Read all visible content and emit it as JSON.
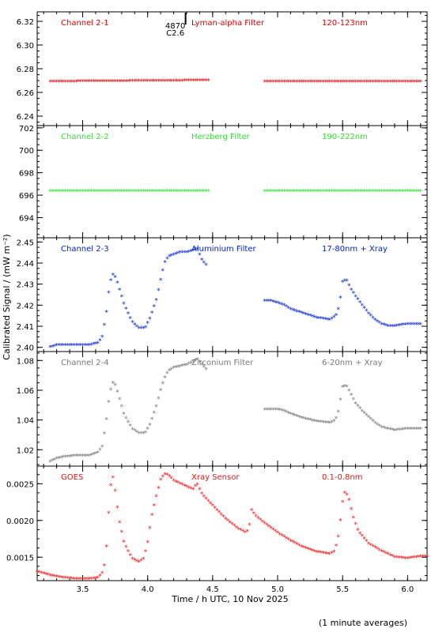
{
  "chart_data": {
    "type": "scatter",
    "xlabel": "Time / h UTC, 10 Nov 2025",
    "ylabel": "Calibrated Signal / (mW m⁻²)",
    "footnote": "(1 minute averages)",
    "xlim": [
      3.15,
      6.15
    ],
    "xticks": [
      3.5,
      4.0,
      4.5,
      5.0,
      5.5,
      6.0
    ],
    "xtick_labels": [
      "3.5",
      "4.0",
      "4.5",
      "5.0",
      "5.5",
      "6.0"
    ],
    "grid": false,
    "annotation": {
      "x": 4.17,
      "lines": [
        "4870",
        "C2.6"
      ]
    },
    "panels": [
      {
        "labels": [
          "Channel 2-1",
          "Lyman-alpha Filter",
          "120-123nm"
        ],
        "color": "#dd0000",
        "ylim": [
          6.232,
          6.328
        ],
        "yticks": [
          6.24,
          6.26,
          6.28,
          6.3,
          6.32
        ],
        "ytick_labels": [
          "6.24",
          "6.26",
          "6.28",
          "6.30",
          "6.32"
        ],
        "segments": [
          {
            "x": [
              3.25,
              4.48
            ],
            "y": [
              6.269,
              6.27
            ]
          },
          {
            "x": [
              4.9,
              6.1
            ],
            "y": [
              6.269,
              6.269
            ]
          }
        ]
      },
      {
        "labels": [
          "Channel 2-2",
          "Herzberg Filter",
          "190-222nm"
        ],
        "color": "#33dd33",
        "ylim": [
          692.2,
          702.2
        ],
        "yticks": [
          694,
          696,
          698,
          700,
          702
        ],
        "ytick_labels": [
          "694",
          "696",
          "698",
          "700",
          "702"
        ],
        "segments": [
          {
            "x": [
              3.25,
              4.48
            ],
            "y": [
              696.35,
              696.35
            ]
          },
          {
            "x": [
              4.9,
              6.1
            ],
            "y": [
              696.35,
              696.35
            ]
          }
        ]
      },
      {
        "labels": [
          "Channel 2-3",
          "Aluminium Filter",
          "17-80nm + Xray"
        ],
        "color": "#0022cc",
        "ylim": [
          2.398,
          2.452
        ],
        "yticks": [
          2.4,
          2.41,
          2.42,
          2.43,
          2.44,
          2.45
        ],
        "ytick_labels": [
          "2.40",
          "2.41",
          "2.42",
          "2.43",
          "2.44",
          "2.45"
        ],
        "segments": [
          {
            "x": [
              3.25,
              3.3,
              3.35,
              3.45,
              3.55,
              3.62,
              3.65,
              3.68,
              3.7,
              3.72,
              3.74,
              3.77,
              3.82,
              3.88,
              3.93,
              3.98,
              4.02,
              4.07,
              4.1,
              4.13,
              4.16,
              4.2,
              4.25,
              4.3,
              4.35,
              4.38,
              4.4,
              4.42,
              4.45
            ],
            "y": [
              2.4,
              2.401,
              2.401,
              2.401,
              2.401,
              2.402,
              2.405,
              2.415,
              2.426,
              2.433,
              2.435,
              2.43,
              2.42,
              2.412,
              2.409,
              2.409,
              2.414,
              2.423,
              2.432,
              2.44,
              2.443,
              2.444,
              2.445,
              2.445,
              2.446,
              2.447,
              2.444,
              2.441,
              2.439
            ]
          },
          {
            "x": [
              4.9,
              4.95,
              5.0,
              5.05,
              5.1,
              5.2,
              5.3,
              5.4,
              5.43,
              5.46,
              5.48,
              5.5,
              5.53,
              5.56,
              5.6,
              5.65,
              5.7,
              5.75,
              5.8,
              5.85,
              5.9,
              6.0,
              6.1
            ],
            "y": [
              2.422,
              2.422,
              2.421,
              2.42,
              2.418,
              2.416,
              2.414,
              2.413,
              2.414,
              2.416,
              2.422,
              2.431,
              2.432,
              2.428,
              2.424,
              2.42,
              2.416,
              2.413,
              2.411,
              2.41,
              2.41,
              2.411,
              2.411
            ]
          }
        ]
      },
      {
        "labels": [
          "Channel 2-4",
          "Zirconium Filter",
          "6-20nm + Xray"
        ],
        "color": "#777777",
        "ylim": [
          1.009,
          1.086
        ],
        "yticks": [
          1.02,
          1.04,
          1.06,
          1.08
        ],
        "ytick_labels": [
          "1.02",
          "1.04",
          "1.06",
          "1.08"
        ],
        "segments": [
          {
            "x": [
              3.25,
              3.3,
              3.35,
              3.45,
              3.55,
              3.62,
              3.65,
              3.68,
              3.7,
              3.72,
              3.74,
              3.77,
              3.82,
              3.88,
              3.93,
              3.98,
              4.02,
              4.07,
              4.1,
              4.13,
              4.16,
              4.2,
              4.25,
              4.3,
              4.35,
              4.38,
              4.4,
              4.42,
              4.45
            ],
            "y": [
              1.012,
              1.014,
              1.015,
              1.016,
              1.016,
              1.018,
              1.022,
              1.038,
              1.052,
              1.062,
              1.066,
              1.058,
              1.043,
              1.034,
              1.031,
              1.031,
              1.037,
              1.05,
              1.06,
              1.068,
              1.073,
              1.075,
              1.076,
              1.077,
              1.079,
              1.081,
              1.079,
              1.077,
              1.074
            ]
          },
          {
            "x": [
              4.9,
              4.95,
              5.0,
              5.05,
              5.1,
              5.2,
              5.3,
              5.4,
              5.43,
              5.46,
              5.48,
              5.5,
              5.53,
              5.56,
              5.6,
              5.65,
              5.7,
              5.75,
              5.8,
              5.85,
              5.9,
              6.0,
              6.1
            ],
            "y": [
              1.047,
              1.047,
              1.047,
              1.046,
              1.044,
              1.041,
              1.039,
              1.038,
              1.039,
              1.042,
              1.052,
              1.062,
              1.063,
              1.058,
              1.051,
              1.046,
              1.042,
              1.038,
              1.035,
              1.034,
              1.033,
              1.034,
              1.034
            ]
          }
        ]
      },
      {
        "labels": [
          "GOES",
          "Xray Sensor",
          "0.1-0.8nm"
        ],
        "color": "#ee1111",
        "ylim": [
          0.00118,
          0.00274
        ],
        "yticks": [
          0.0015,
          0.002,
          0.0025
        ],
        "ytick_labels": [
          "0.0015",
          "0.0020",
          "0.0025"
        ],
        "segments": [
          {
            "x": [
              3.15,
              3.25,
              3.35,
              3.45,
              3.55,
              3.62,
              3.66,
              3.68,
              3.7,
              3.72,
              3.73,
              3.75,
              3.78,
              3.82,
              3.88,
              3.93,
              3.97,
              4.0,
              4.03,
              4.07,
              4.1,
              4.13,
              4.15,
              4.18,
              4.2,
              4.25,
              4.3,
              4.35,
              4.38,
              4.42,
              4.5,
              4.6,
              4.7,
              4.76,
              4.78,
              4.8,
              4.83,
              4.9,
              5.0,
              5.1,
              5.2,
              5.3,
              5.4,
              5.44,
              5.47,
              5.5,
              5.52,
              5.55,
              5.58,
              5.62,
              5.7,
              5.8,
              5.9,
              6.0,
              6.1,
              6.15
            ],
            "y": [
              0.0013,
              0.00125,
              0.00122,
              0.0012,
              0.0012,
              0.00122,
              0.0013,
              0.00155,
              0.0021,
              0.00255,
              0.00262,
              0.0024,
              0.002,
              0.00168,
              0.00148,
              0.00143,
              0.00148,
              0.0017,
              0.00205,
              0.00235,
              0.00255,
              0.00263,
              0.00262,
              0.00258,
              0.00254,
              0.0025,
              0.00246,
              0.00242,
              0.0025,
              0.00235,
              0.0022,
              0.00202,
              0.00188,
              0.00183,
              0.0019,
              0.00214,
              0.00206,
              0.00196,
              0.00183,
              0.00172,
              0.00163,
              0.00157,
              0.00154,
              0.00158,
              0.0018,
              0.00225,
              0.0024,
              0.00228,
              0.00205,
              0.00185,
              0.00168,
              0.00158,
              0.0015,
              0.00148,
              0.00151,
              0.00151
            ]
          }
        ]
      }
    ]
  }
}
